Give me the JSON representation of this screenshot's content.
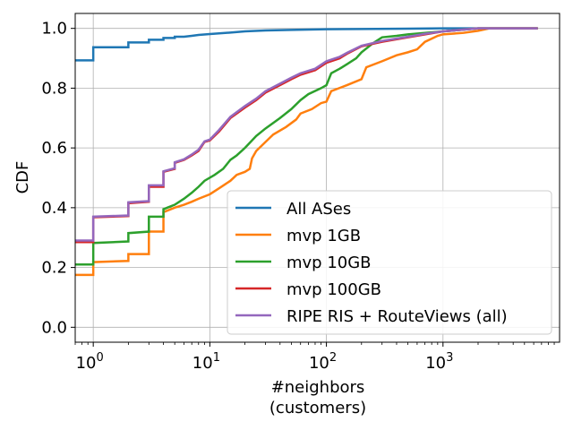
{
  "chart_data": {
    "type": "line",
    "xscale": "log",
    "xlabel_lines": [
      "#neighbors",
      "(customers)"
    ],
    "ylabel": "CDF",
    "xlim": [
      0.7,
      10000
    ],
    "ylim": [
      -0.05,
      1.05
    ],
    "grid": true,
    "legend_position": "lower-right",
    "x_ticks": [
      {
        "value": 1,
        "base": "10",
        "exp": "0"
      },
      {
        "value": 10,
        "base": "10",
        "exp": "1"
      },
      {
        "value": 100,
        "base": "10",
        "exp": "2"
      },
      {
        "value": 1000,
        "base": "10",
        "exp": "3"
      }
    ],
    "y_ticks": [
      {
        "value": 0.0,
        "label": "0.0"
      },
      {
        "value": 0.2,
        "label": "0.2"
      },
      {
        "value": 0.4,
        "label": "0.4"
      },
      {
        "value": 0.6,
        "label": "0.6"
      },
      {
        "value": 0.8,
        "label": "0.8"
      },
      {
        "value": 1.0,
        "label": "1.0"
      }
    ],
    "series": [
      {
        "name": "All ASes",
        "color": "#1f77b4",
        "points": [
          [
            0.7,
            0.893
          ],
          [
            1,
            0.893
          ],
          [
            1,
            0.937
          ],
          [
            2,
            0.937
          ],
          [
            2,
            0.953
          ],
          [
            3,
            0.953
          ],
          [
            3,
            0.962
          ],
          [
            4,
            0.962
          ],
          [
            4,
            0.968
          ],
          [
            5,
            0.968
          ],
          [
            5,
            0.972
          ],
          [
            6,
            0.972
          ],
          [
            7,
            0.975
          ],
          [
            8,
            0.978
          ],
          [
            10,
            0.981
          ],
          [
            15,
            0.986
          ],
          [
            20,
            0.99
          ],
          [
            30,
            0.993
          ],
          [
            50,
            0.995
          ],
          [
            100,
            0.997
          ],
          [
            200,
            0.998
          ],
          [
            500,
            0.999
          ],
          [
            1000,
            1.0
          ],
          [
            6500,
            1.0
          ]
        ]
      },
      {
        "name": "mvp 1GB",
        "color": "#ff7f0e",
        "points": [
          [
            0.7,
            0.175
          ],
          [
            1,
            0.175
          ],
          [
            1,
            0.218
          ],
          [
            2,
            0.222
          ],
          [
            2,
            0.245
          ],
          [
            3,
            0.245
          ],
          [
            3,
            0.32
          ],
          [
            4,
            0.32
          ],
          [
            4,
            0.385
          ],
          [
            5,
            0.4
          ],
          [
            6,
            0.41
          ],
          [
            7,
            0.42
          ],
          [
            8,
            0.43
          ],
          [
            10,
            0.445
          ],
          [
            12,
            0.465
          ],
          [
            15,
            0.49
          ],
          [
            17,
            0.51
          ],
          [
            20,
            0.52
          ],
          [
            22,
            0.53
          ],
          [
            23,
            0.565
          ],
          [
            25,
            0.59
          ],
          [
            30,
            0.62
          ],
          [
            35,
            0.645
          ],
          [
            45,
            0.67
          ],
          [
            55,
            0.695
          ],
          [
            60,
            0.715
          ],
          [
            75,
            0.73
          ],
          [
            90,
            0.75
          ],
          [
            100,
            0.755
          ],
          [
            110,
            0.79
          ],
          [
            150,
            0.81
          ],
          [
            200,
            0.83
          ],
          [
            220,
            0.87
          ],
          [
            300,
            0.89
          ],
          [
            400,
            0.91
          ],
          [
            500,
            0.92
          ],
          [
            600,
            0.93
          ],
          [
            700,
            0.955
          ],
          [
            900,
            0.975
          ],
          [
            1000,
            0.98
          ],
          [
            1500,
            0.985
          ],
          [
            2000,
            0.992
          ],
          [
            2500,
            1.0
          ],
          [
            6500,
            1.0
          ]
        ]
      },
      {
        "name": "mvp 10GB",
        "color": "#2ca02c",
        "points": [
          [
            0.7,
            0.21
          ],
          [
            1,
            0.21
          ],
          [
            1,
            0.282
          ],
          [
            2,
            0.287
          ],
          [
            2,
            0.315
          ],
          [
            3,
            0.32
          ],
          [
            3,
            0.37
          ],
          [
            4,
            0.37
          ],
          [
            4,
            0.395
          ],
          [
            5,
            0.41
          ],
          [
            6,
            0.43
          ],
          [
            7,
            0.45
          ],
          [
            8,
            0.47
          ],
          [
            9,
            0.49
          ],
          [
            11,
            0.51
          ],
          [
            13,
            0.53
          ],
          [
            15,
            0.56
          ],
          [
            17,
            0.575
          ],
          [
            20,
            0.6
          ],
          [
            25,
            0.64
          ],
          [
            30,
            0.665
          ],
          [
            40,
            0.7
          ],
          [
            50,
            0.73
          ],
          [
            60,
            0.76
          ],
          [
            70,
            0.78
          ],
          [
            90,
            0.8
          ],
          [
            100,
            0.81
          ],
          [
            110,
            0.85
          ],
          [
            130,
            0.865
          ],
          [
            150,
            0.88
          ],
          [
            180,
            0.9
          ],
          [
            200,
            0.92
          ],
          [
            250,
            0.95
          ],
          [
            300,
            0.97
          ],
          [
            400,
            0.975
          ],
          [
            500,
            0.98
          ],
          [
            700,
            0.985
          ],
          [
            1000,
            0.99
          ],
          [
            2000,
            1.0
          ],
          [
            6500,
            1.0
          ]
        ]
      },
      {
        "name": "mvp 100GB",
        "color": "#d62728",
        "points": [
          [
            0.7,
            0.285
          ],
          [
            1,
            0.285
          ],
          [
            1,
            0.368
          ],
          [
            2,
            0.372
          ],
          [
            2,
            0.415
          ],
          [
            3,
            0.42
          ],
          [
            3,
            0.47
          ],
          [
            4,
            0.47
          ],
          [
            4,
            0.52
          ],
          [
            5,
            0.53
          ],
          [
            5,
            0.55
          ],
          [
            6,
            0.56
          ],
          [
            7,
            0.575
          ],
          [
            8,
            0.59
          ],
          [
            9,
            0.62
          ],
          [
            10,
            0.625
          ],
          [
            12,
            0.655
          ],
          [
            15,
            0.7
          ],
          [
            20,
            0.735
          ],
          [
            25,
            0.76
          ],
          [
            30,
            0.785
          ],
          [
            40,
            0.81
          ],
          [
            50,
            0.83
          ],
          [
            60,
            0.845
          ],
          [
            80,
            0.86
          ],
          [
            100,
            0.885
          ],
          [
            130,
            0.9
          ],
          [
            150,
            0.915
          ],
          [
            200,
            0.94
          ],
          [
            300,
            0.955
          ],
          [
            500,
            0.97
          ],
          [
            700,
            0.98
          ],
          [
            1000,
            0.99
          ],
          [
            2000,
            1.0
          ],
          [
            6500,
            1.0
          ]
        ]
      },
      {
        "name": "RIPE RIS + RouteViews (all)",
        "color": "#9467bd",
        "points": [
          [
            0.7,
            0.29
          ],
          [
            1,
            0.29
          ],
          [
            1,
            0.37
          ],
          [
            2,
            0.374
          ],
          [
            2,
            0.418
          ],
          [
            3,
            0.422
          ],
          [
            3,
            0.475
          ],
          [
            4,
            0.475
          ],
          [
            4,
            0.522
          ],
          [
            5,
            0.532
          ],
          [
            5,
            0.552
          ],
          [
            6,
            0.562
          ],
          [
            7,
            0.578
          ],
          [
            8,
            0.594
          ],
          [
            9,
            0.622
          ],
          [
            10,
            0.628
          ],
          [
            12,
            0.66
          ],
          [
            15,
            0.704
          ],
          [
            20,
            0.74
          ],
          [
            25,
            0.765
          ],
          [
            30,
            0.79
          ],
          [
            40,
            0.815
          ],
          [
            50,
            0.835
          ],
          [
            60,
            0.85
          ],
          [
            80,
            0.865
          ],
          [
            100,
            0.89
          ],
          [
            130,
            0.905
          ],
          [
            150,
            0.918
          ],
          [
            200,
            0.942
          ],
          [
            300,
            0.958
          ],
          [
            500,
            0.972
          ],
          [
            700,
            0.982
          ],
          [
            1000,
            0.99
          ],
          [
            2000,
            1.0
          ],
          [
            6500,
            1.0
          ]
        ]
      }
    ]
  }
}
